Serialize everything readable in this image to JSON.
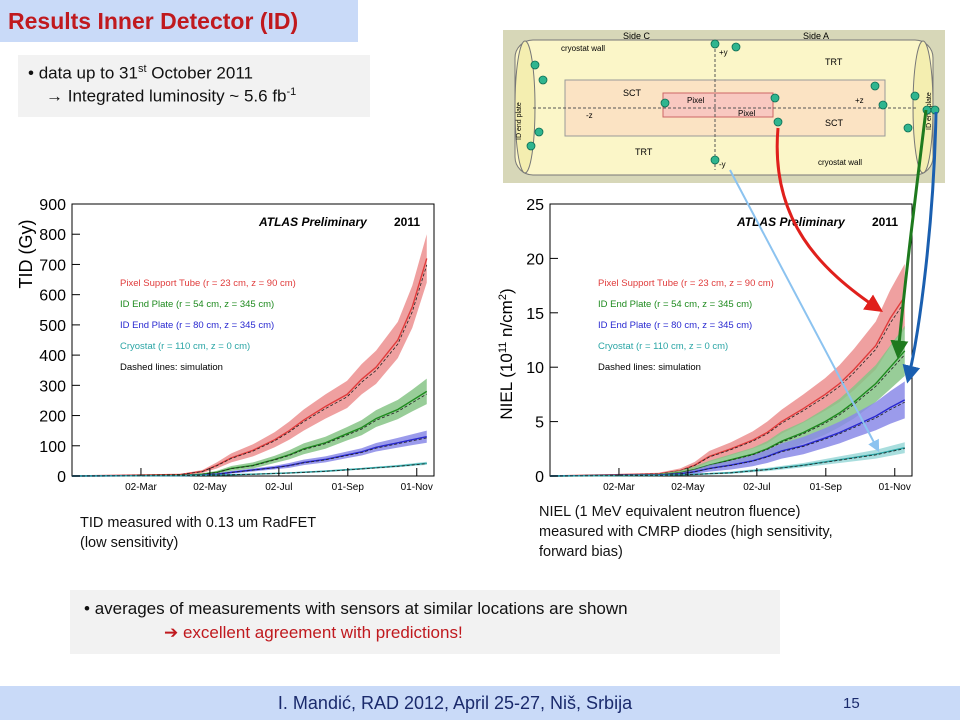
{
  "slide": {
    "title": "Results Inner Detector (ID)",
    "bullet1_line1_pre": "data up to 31",
    "bullet1_line1_sup": "st",
    "bullet1_line1_post": " October 2011",
    "bullet1_line2_pre": " Integrated luminosity ~ 5.6 fb",
    "bullet1_line2_sup": "-1",
    "caption_tid_line1": "TID measured with 0.13 um RadFET",
    "caption_tid_line2": "(low sensitivity)",
    "caption_niel_line1": "NIEL (1 MeV equivalent neutron fluence)",
    "caption_niel_line2": "measured with CMRP diodes (high sensitivity,",
    "caption_niel_line3": "forward bias)",
    "bullet2_line1": "averages of measurements with sensors at similar locations are shown",
    "bullet2_line2": " excellent agreement with predictions!",
    "footer": "I. Mandić, RAD 2012, April 25-27, Niš, Srbija",
    "page_number": "15",
    "accent_color": "#c0191e",
    "header_bg": "#c9daf8"
  },
  "diagram": {
    "side_c": "Side C",
    "side_a": "Side A",
    "cryostat_wall": "cryostat wall",
    "trt": "TRT",
    "sct": "SCT",
    "pixel": "Pixel",
    "id_end_plate": "ID end plate",
    "plus_y": "+y",
    "minus_y": "-y",
    "plus_z": "+z",
    "minus_z": "-z"
  },
  "chart_data": [
    {
      "type": "line",
      "ylabel": "TID (Gy)",
      "watermark": "ATLAS Preliminary",
      "year": "2011",
      "ylim": [
        0,
        900
      ],
      "yticks": [
        0,
        100,
        200,
        300,
        400,
        500,
        600,
        700,
        800,
        900
      ],
      "xticks": [
        "02-Mar",
        "02-May",
        "02-Jul",
        "01-Sep",
        "01-Nov"
      ],
      "xlim": [
        0,
        5
      ],
      "legend_note": "Dashed lines: simulation",
      "series": [
        {
          "name": "Pixel Support Tube (r = 23 cm, z = 90 cm)",
          "color": "#e03c3c",
          "band": "#ec8f8f",
          "x": [
            0,
            1.5,
            1.8,
            2.0,
            2.2,
            2.5,
            2.8,
            3.0,
            3.2,
            3.5,
            3.8,
            4.0,
            4.2,
            4.5,
            4.7,
            4.9
          ],
          "values": [
            0,
            5,
            15,
            35,
            60,
            85,
            120,
            150,
            185,
            230,
            270,
            320,
            360,
            450,
            560,
            720
          ],
          "err": [
            0,
            2,
            5,
            10,
            15,
            20,
            25,
            30,
            35,
            40,
            45,
            50,
            55,
            60,
            70,
            80
          ]
        },
        {
          "name": "ID End Plate (r = 54 cm, z = 345 cm)",
          "color": "#1e8a1e",
          "band": "#86c486",
          "x": [
            0,
            1.5,
            1.8,
            2.0,
            2.2,
            2.5,
            2.8,
            3.0,
            3.2,
            3.5,
            3.8,
            4.0,
            4.2,
            4.5,
            4.7,
            4.9
          ],
          "values": [
            0,
            2,
            6,
            12,
            25,
            35,
            55,
            70,
            90,
            110,
            140,
            160,
            190,
            220,
            250,
            280
          ],
          "err": [
            0,
            1,
            3,
            5,
            8,
            10,
            12,
            15,
            18,
            20,
            22,
            25,
            28,
            32,
            36,
            42
          ]
        },
        {
          "name": "ID End Plate (r = 80 cm, z = 345 cm)",
          "color": "#2828d0",
          "band": "#8a8ae8",
          "x": [
            0,
            1.5,
            1.8,
            2.0,
            2.2,
            2.5,
            2.8,
            3.0,
            3.2,
            3.5,
            3.8,
            4.0,
            4.2,
            4.5,
            4.7,
            4.9
          ],
          "values": [
            0,
            1,
            3,
            6,
            12,
            20,
            28,
            35,
            45,
            55,
            70,
            80,
            95,
            110,
            120,
            130
          ],
          "err": [
            0,
            1,
            2,
            3,
            4,
            5,
            6,
            8,
            9,
            10,
            11,
            12,
            14,
            16,
            18,
            20
          ]
        },
        {
          "name": "Cryostat (r = 110 cm, z = 0 cm)",
          "color": "#2aa5a5",
          "band": "#9ad8d8",
          "x": [
            0,
            1.5,
            2.0,
            2.5,
            3.0,
            3.5,
            4.0,
            4.5,
            4.9
          ],
          "values": [
            0,
            1,
            3,
            6,
            10,
            16,
            24,
            33,
            42
          ],
          "err": [
            0,
            0,
            1,
            2,
            2,
            3,
            3,
            4,
            5
          ]
        }
      ]
    },
    {
      "type": "line",
      "ylabel_pre": "NIEL (10",
      "ylabel_sup1": "11",
      "ylabel_mid": " n/cm",
      "ylabel_sup2": "2",
      "ylabel_post": ")",
      "watermark": "ATLAS Preliminary",
      "year": "2011",
      "ylim": [
        0,
        25
      ],
      "yticks": [
        0,
        5,
        10,
        15,
        20,
        25
      ],
      "xticks": [
        "02-Mar",
        "02-May",
        "02-Jul",
        "01-Sep",
        "01-Nov"
      ],
      "xlim": [
        0,
        5
      ],
      "legend_note": "Dashed lines: simulation",
      "series": [
        {
          "name": "Pixel Support Tube (r = 23 cm, z = 90 cm)",
          "color": "#e03c3c",
          "band": "#ec8f8f",
          "x": [
            0,
            1.5,
            1.8,
            2.0,
            2.2,
            2.5,
            2.8,
            3.0,
            3.2,
            3.5,
            3.8,
            4.0,
            4.2,
            4.5,
            4.7,
            4.9
          ],
          "values": [
            0,
            0.2,
            0.5,
            1.0,
            1.8,
            2.5,
            3.3,
            4.0,
            5.0,
            6.2,
            7.5,
            8.5,
            9.8,
            12.0,
            14.5,
            16.5
          ],
          "err": [
            0,
            0.1,
            0.2,
            0.3,
            0.5,
            0.6,
            0.8,
            1.0,
            1.1,
            1.3,
            1.5,
            1.7,
            1.9,
            2.2,
            2.6,
            3.0
          ]
        },
        {
          "name": "ID End Plate (r = 54 cm, z = 345 cm)",
          "color": "#1e8a1e",
          "band": "#86c486",
          "x": [
            0,
            1.5,
            1.8,
            2.0,
            2.2,
            2.5,
            2.8,
            3.0,
            3.2,
            3.5,
            3.8,
            4.0,
            4.2,
            4.5,
            4.7,
            4.9
          ],
          "values": [
            0,
            0.1,
            0.3,
            0.6,
            1.0,
            1.5,
            2.0,
            2.5,
            3.2,
            4.0,
            5.0,
            5.8,
            6.8,
            8.5,
            10.0,
            11.5
          ],
          "err": [
            0,
            0.1,
            0.2,
            0.3,
            0.4,
            0.5,
            0.6,
            0.7,
            0.9,
            1.0,
            1.2,
            1.3,
            1.5,
            1.7,
            2.0,
            2.3
          ]
        },
        {
          "name": "ID End Plate (r = 80 cm, z = 345 cm)",
          "color": "#2828d0",
          "band": "#8a8ae8",
          "x": [
            0,
            1.5,
            1.8,
            2.0,
            2.2,
            2.5,
            2.8,
            3.0,
            3.2,
            3.5,
            3.8,
            4.0,
            4.2,
            4.5,
            4.7,
            4.9
          ],
          "values": [
            0,
            0.1,
            0.2,
            0.4,
            0.7,
            1.0,
            1.4,
            1.8,
            2.3,
            2.8,
            3.5,
            4.0,
            4.6,
            5.5,
            6.3,
            7.0
          ],
          "err": [
            0,
            0,
            0.1,
            0.2,
            0.3,
            0.4,
            0.5,
            0.6,
            0.7,
            0.8,
            0.9,
            1.0,
            1.1,
            1.3,
            1.5,
            1.7
          ]
        },
        {
          "name": "Cryostat (r = 110 cm, z = 0 cm)",
          "color": "#2aa5a5",
          "band": "#9ad8d8",
          "x": [
            0,
            1.5,
            2.0,
            2.5,
            3.0,
            3.5,
            4.0,
            4.5,
            4.9
          ],
          "values": [
            0,
            0.05,
            0.15,
            0.3,
            0.6,
            1.0,
            1.5,
            2.0,
            2.6
          ],
          "err": [
            0,
            0,
            0.05,
            0.1,
            0.15,
            0.2,
            0.3,
            0.4,
            0.5
          ]
        }
      ]
    }
  ]
}
